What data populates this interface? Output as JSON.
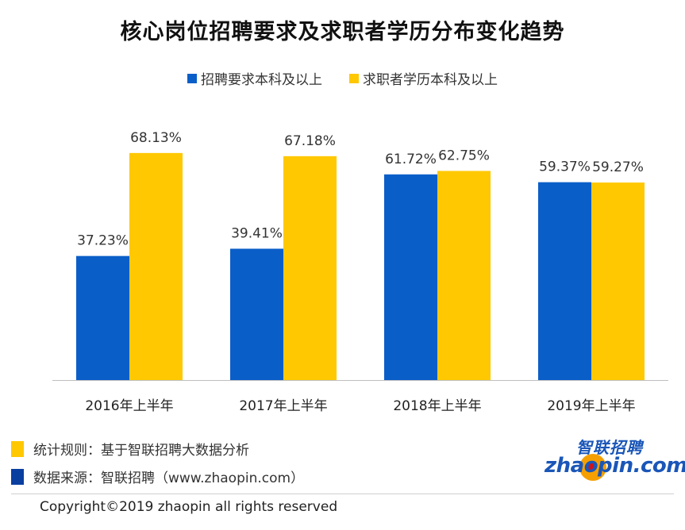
{
  "chart_data": {
    "type": "bar",
    "title": "核心岗位招聘要求及求职者学历分布变化趋势",
    "categories": [
      "2016年上半年",
      "2017年上半年",
      "2018年上半年",
      "2019年上半年"
    ],
    "series": [
      {
        "name": "招聘要求本科及以上",
        "color": "#0a5ec8",
        "values": [
          37.23,
          39.41,
          61.72,
          59.37
        ],
        "labels": [
          "37.23%",
          "39.41%",
          "61.72%",
          "59.37%"
        ]
      },
      {
        "name": "求职者学历本科及以上",
        "color": "#ffc800",
        "values": [
          68.13,
          67.18,
          62.75,
          59.27
        ],
        "labels": [
          "68.13%",
          "67.18%",
          "62.75%",
          "59.27%"
        ]
      }
    ],
    "ylim": [
      0,
      80
    ],
    "legend": "top-center",
    "grid": false,
    "xlabel": "",
    "ylabel": ""
  },
  "notes": {
    "rule": {
      "text": "统计规则：基于智联招聘大数据分析",
      "color": "#ffc800"
    },
    "source": {
      "text": "数据来源：智联招聘（www.zhaopin.com）",
      "color": "#0a3fa0"
    }
  },
  "logo": {
    "cn": "智联招聘",
    "en": "zhaopin.com"
  },
  "copyright": "Copyright©2019 zhaopin all rights reserved"
}
